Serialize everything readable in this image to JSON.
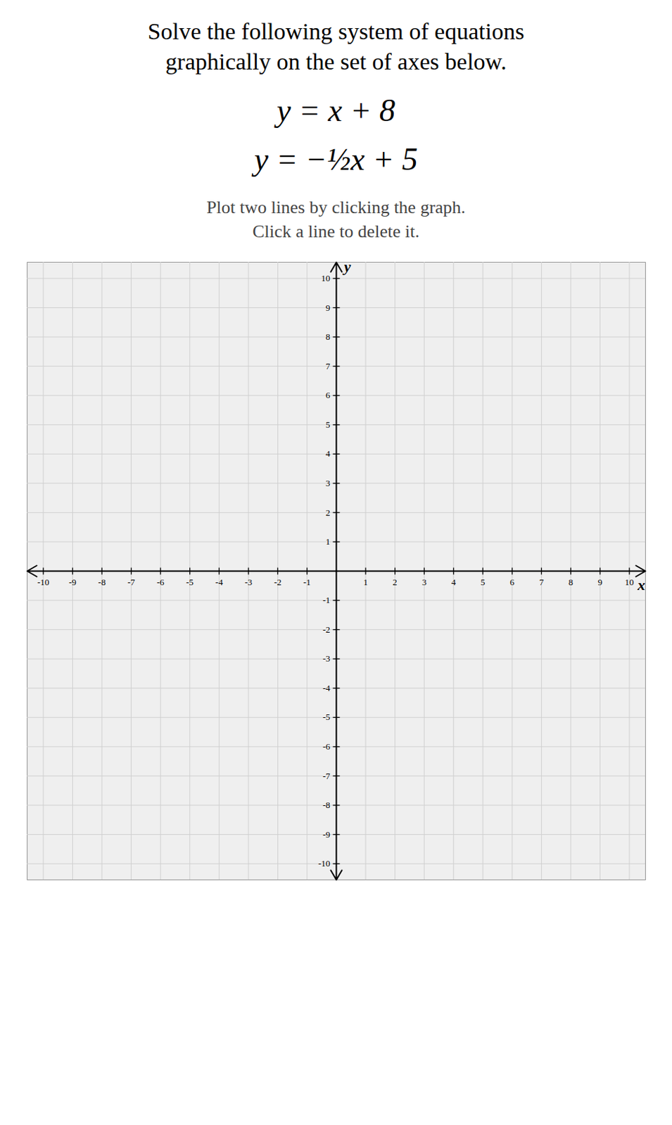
{
  "chart_data": {
    "type": "plane",
    "title": "Solve the following system of equations\ngraphically on the set of axes below.",
    "annotations": [
      "y = x + 8",
      "y = −½x + 5",
      "Plot two lines by clicking the graph.",
      "Click a line to delete it."
    ],
    "x_label": "x",
    "y_label": "y",
    "xlim": [
      -10.55,
      10.55
    ],
    "ylim": [
      -10.55,
      10.55
    ],
    "xticks": [
      -10,
      -9,
      -8,
      -7,
      -6,
      -5,
      -4,
      -3,
      -2,
      -1,
      1,
      2,
      3,
      4,
      5,
      6,
      7,
      8,
      9,
      10
    ],
    "yticks": [
      -10,
      -9,
      -8,
      -7,
      -6,
      -5,
      -4,
      -3,
      -2,
      -1,
      1,
      2,
      3,
      4,
      5,
      6,
      7,
      8,
      9,
      10
    ],
    "grid": true
  }
}
